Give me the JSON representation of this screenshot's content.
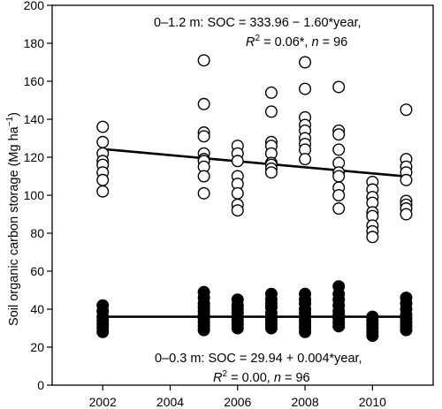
{
  "chart_data": {
    "type": "scatter",
    "ylabel": "Soil organic carbon storage (Mg ha",
    "ylabel_unit_exp": "−1",
    "ylabel_close": ")",
    "xlim": [
      2000.5,
      2011.8
    ],
    "ylim": [
      0,
      200
    ],
    "xticks": [
      2002,
      2004,
      2006,
      2008,
      2010
    ],
    "yticks": [
      0,
      20,
      40,
      60,
      80,
      100,
      120,
      140,
      160,
      180,
      200
    ],
    "series": [
      {
        "id": "deep",
        "marker": "open-circle",
        "color": "#000000",
        "points": [
          [
            2002,
            136
          ],
          [
            2002,
            128
          ],
          [
            2002,
            122
          ],
          [
            2002,
            118
          ],
          [
            2002,
            116
          ],
          [
            2002,
            112
          ],
          [
            2002,
            108
          ],
          [
            2002,
            102
          ],
          [
            2005,
            171
          ],
          [
            2005,
            148
          ],
          [
            2005,
            133
          ],
          [
            2005,
            131
          ],
          [
            2005,
            122
          ],
          [
            2005,
            119
          ],
          [
            2005,
            118
          ],
          [
            2005,
            115
          ],
          [
            2005,
            110
          ],
          [
            2005,
            101
          ],
          [
            2006,
            126
          ],
          [
            2006,
            122
          ],
          [
            2006,
            118
          ],
          [
            2006,
            110
          ],
          [
            2006,
            106
          ],
          [
            2006,
            101
          ],
          [
            2006,
            95
          ],
          [
            2006,
            92
          ],
          [
            2007,
            154
          ],
          [
            2007,
            144
          ],
          [
            2007,
            128
          ],
          [
            2007,
            126
          ],
          [
            2007,
            122
          ],
          [
            2007,
            117
          ],
          [
            2007,
            116
          ],
          [
            2007,
            114
          ],
          [
            2007,
            112
          ],
          [
            2008,
            170
          ],
          [
            2008,
            156
          ],
          [
            2008,
            141
          ],
          [
            2008,
            137
          ],
          [
            2008,
            134
          ],
          [
            2008,
            130
          ],
          [
            2008,
            127
          ],
          [
            2008,
            124
          ],
          [
            2008,
            119
          ],
          [
            2009,
            157
          ],
          [
            2009,
            134
          ],
          [
            2009,
            132
          ],
          [
            2009,
            124
          ],
          [
            2009,
            117
          ],
          [
            2009,
            112
          ],
          [
            2009,
            110
          ],
          [
            2009,
            104
          ],
          [
            2009,
            100
          ],
          [
            2009,
            93
          ],
          [
            2010,
            107
          ],
          [
            2010,
            103
          ],
          [
            2010,
            99
          ],
          [
            2010,
            96
          ],
          [
            2010,
            91
          ],
          [
            2010,
            89
          ],
          [
            2010,
            84
          ],
          [
            2010,
            81
          ],
          [
            2010,
            78
          ],
          [
            2011,
            145
          ],
          [
            2011,
            119
          ],
          [
            2011,
            115
          ],
          [
            2011,
            112
          ],
          [
            2011,
            108
          ],
          [
            2011,
            97
          ],
          [
            2011,
            95
          ],
          [
            2011,
            93
          ],
          [
            2011,
            90
          ]
        ],
        "trend": {
          "x": [
            2002,
            2011
          ],
          "y": [
            124.3,
            109.9
          ]
        },
        "annotation_depth": "0–1.2 m",
        "annotation_equation": ": SOC = 333.96 − 1.60*year,",
        "annotation_r2_label": "R",
        "annotation_r2_exp": "2",
        "annotation_r2_rest": " = 0.06*, ",
        "annotation_n_label": "n",
        "annotation_n_value": " = 96"
      },
      {
        "id": "shallow",
        "marker": "filled-circle",
        "color": "#000000",
        "points": [
          [
            2002,
            42
          ],
          [
            2002,
            39
          ],
          [
            2002,
            36
          ],
          [
            2002,
            34
          ],
          [
            2002,
            32
          ],
          [
            2002,
            30
          ],
          [
            2002,
            28
          ],
          [
            2005,
            49
          ],
          [
            2005,
            46
          ],
          [
            2005,
            43
          ],
          [
            2005,
            41
          ],
          [
            2005,
            39
          ],
          [
            2005,
            37
          ],
          [
            2005,
            35
          ],
          [
            2005,
            33
          ],
          [
            2005,
            31
          ],
          [
            2005,
            29
          ],
          [
            2006,
            45
          ],
          [
            2006,
            42
          ],
          [
            2006,
            40
          ],
          [
            2006,
            38
          ],
          [
            2006,
            36
          ],
          [
            2006,
            34
          ],
          [
            2006,
            32
          ],
          [
            2006,
            30
          ],
          [
            2007,
            48
          ],
          [
            2007,
            45
          ],
          [
            2007,
            43
          ],
          [
            2007,
            41
          ],
          [
            2007,
            38
          ],
          [
            2007,
            36
          ],
          [
            2007,
            34
          ],
          [
            2007,
            32
          ],
          [
            2007,
            30
          ],
          [
            2008,
            48
          ],
          [
            2008,
            45
          ],
          [
            2008,
            43
          ],
          [
            2008,
            40
          ],
          [
            2008,
            38
          ],
          [
            2008,
            36
          ],
          [
            2008,
            34
          ],
          [
            2008,
            32
          ],
          [
            2008,
            30
          ],
          [
            2008,
            28
          ],
          [
            2009,
            52
          ],
          [
            2009,
            48
          ],
          [
            2009,
            45
          ],
          [
            2009,
            42
          ],
          [
            2009,
            39
          ],
          [
            2009,
            37
          ],
          [
            2009,
            35
          ],
          [
            2009,
            33
          ],
          [
            2009,
            31
          ],
          [
            2010,
            36
          ],
          [
            2010,
            34
          ],
          [
            2010,
            32
          ],
          [
            2010,
            30
          ],
          [
            2010,
            28
          ],
          [
            2010,
            26
          ],
          [
            2011,
            46
          ],
          [
            2011,
            43
          ],
          [
            2011,
            40
          ],
          [
            2011,
            37
          ],
          [
            2011,
            35
          ],
          [
            2011,
            33
          ],
          [
            2011,
            31
          ],
          [
            2011,
            29
          ]
        ],
        "trend": {
          "x": [
            2002,
            2011
          ],
          "y": [
            36.0,
            36.0
          ]
        },
        "annotation_depth": "0–0.3 m",
        "annotation_equation": ": SOC = 29.94 + 0.004*year,",
        "annotation_r2_label": "R",
        "annotation_r2_exp": "2",
        "annotation_r2_rest": " = 0.00, ",
        "annotation_n_label": "n",
        "annotation_n_value": " = 96"
      }
    ]
  }
}
